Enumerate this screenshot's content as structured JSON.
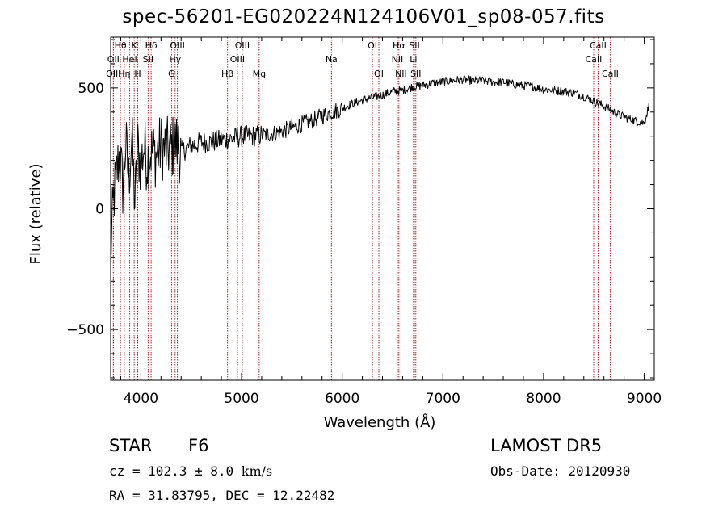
{
  "chart_data": {
    "type": "line",
    "title": "spec-56201-EG020224N124106V01_sp08-057.fits",
    "xlabel": "Wavelength (Å)",
    "ylabel": "Flux (relative)",
    "xlim": [
      3700,
      9100
    ],
    "ylim": [
      -710,
      710
    ],
    "x_ticks": [
      4000,
      5000,
      6000,
      7000,
      8000,
      9000
    ],
    "y_ticks": [
      -500,
      0,
      500
    ],
    "grid": false,
    "line_color": "#000000",
    "marker_color": "#b22222",
    "spectral_lines": [
      {
        "name": "Hθ",
        "wavelength": 3797,
        "row": 0
      },
      {
        "name": "OII",
        "wavelength": 3727,
        "row": 1
      },
      {
        "name": "OIII",
        "wavelength": 3727,
        "row": 2
      },
      {
        "name": "Hη",
        "wavelength": 3835,
        "row": 2
      },
      {
        "name": "K",
        "wavelength": 3934,
        "row": 0
      },
      {
        "name": "HeI",
        "wavelength": 3889,
        "row": 1
      },
      {
        "name": "H",
        "wavelength": 3969,
        "row": 2
      },
      {
        "name": "Hδ",
        "wavelength": 4102,
        "row": 0
      },
      {
        "name": "SII",
        "wavelength": 4072,
        "row": 1
      },
      {
        "name": "OIII",
        "wavelength": 4363,
        "row": 0
      },
      {
        "name": "Hγ",
        "wavelength": 4340,
        "row": 1
      },
      {
        "name": "G",
        "wavelength": 4305,
        "row": 2
      },
      {
        "name": "OIII",
        "wavelength": 5007,
        "row": 0
      },
      {
        "name": "OIII",
        "wavelength": 4959,
        "row": 1
      },
      {
        "name": "Hβ",
        "wavelength": 4861,
        "row": 2
      },
      {
        "name": "Mg",
        "wavelength": 5175,
        "row": 2
      },
      {
        "name": "Na",
        "wavelength": 5893,
        "row": 1
      },
      {
        "name": "OI",
        "wavelength": 6300,
        "row": 0
      },
      {
        "name": "OI",
        "wavelength": 6364,
        "row": 2
      },
      {
        "name": "Hα",
        "wavelength": 6563,
        "row": 0
      },
      {
        "name": "NII",
        "wavelength": 6548,
        "row": 1
      },
      {
        "name": "NII",
        "wavelength": 6584,
        "row": 2
      },
      {
        "name": "SII",
        "wavelength": 6717,
        "row": 0
      },
      {
        "name": "Li",
        "wavelength": 6708,
        "row": 1
      },
      {
        "name": "SII",
        "wavelength": 6731,
        "row": 2
      },
      {
        "name": "CaII",
        "wavelength": 8542,
        "row": 0
      },
      {
        "name": "CaII",
        "wavelength": 8498,
        "row": 1
      },
      {
        "name": "CaII",
        "wavelength": 8662,
        "row": 2
      }
    ],
    "series": [
      {
        "x": [
          3700,
          3730,
          3760,
          3790,
          3820,
          3850,
          3880,
          3910,
          3940,
          3970,
          4000,
          4030,
          4060,
          4100,
          4150,
          4200,
          4250,
          4300,
          4350,
          4400,
          4450,
          4500,
          4600,
          4700,
          4800,
          4900,
          5000,
          5100,
          5200,
          5300,
          5400,
          5500,
          5600,
          5700,
          5800,
          5900,
          6000,
          6100,
          6200,
          6300,
          6400,
          6500,
          6600,
          6700,
          6800,
          6900,
          7000,
          7100,
          7200,
          7300,
          7400,
          7500,
          7600,
          7700,
          7800,
          7900,
          8000,
          8100,
          8200,
          8300,
          8400,
          8500,
          8600,
          8700,
          8800,
          8900,
          9000,
          9050
        ],
        "y": [
          -180,
          40,
          150,
          230,
          90,
          270,
          120,
          300,
          20,
          250,
          180,
          260,
          200,
          240,
          220,
          260,
          240,
          250,
          270,
          230,
          250,
          260,
          275,
          275,
          285,
          290,
          300,
          300,
          305,
          310,
          320,
          335,
          350,
          365,
          385,
          400,
          415,
          435,
          450,
          460,
          470,
          485,
          490,
          505,
          510,
          520,
          525,
          530,
          535,
          530,
          530,
          525,
          525,
          515,
          510,
          505,
          495,
          490,
          485,
          480,
          465,
          445,
          425,
          400,
          380,
          365,
          355,
          430
        ]
      }
    ]
  },
  "info": {
    "obj_class": "STAR",
    "subclass": "F6",
    "survey": "LAMOST DR5",
    "cz_prefix": "cz = 102.3 ± 8.0 ",
    "cz_unit": "km/s",
    "obs_date": "Obs-Date: 20120930",
    "coords": "RA =  31.83795, DEC =  12.22482"
  }
}
